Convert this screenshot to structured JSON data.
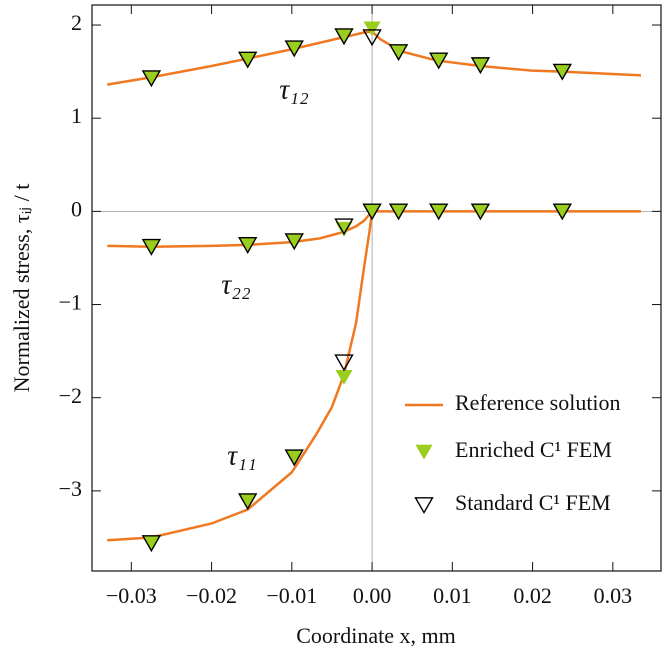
{
  "chart_data": {
    "type": "line-scatter",
    "x_label": "Coordinate x, mm",
    "y_label": "Normalized stress,  τᵢⱼ / t",
    "xlim": [
      -0.0349,
      0.036
    ],
    "ylim": [
      -3.86,
      2.215
    ],
    "xticks": [
      {
        "value": -0.03,
        "label": "−0.03"
      },
      {
        "value": -0.02,
        "label": "−0.02"
      },
      {
        "value": -0.01,
        "label": "−0.01"
      },
      {
        "value": 0,
        "label": "0.00"
      },
      {
        "value": 0.01,
        "label": "0.01"
      },
      {
        "value": 0.02,
        "label": "0.02"
      },
      {
        "value": 0.03,
        "label": "0.03"
      }
    ],
    "yticks": [
      {
        "value": -3,
        "label": "−3"
      },
      {
        "value": -2,
        "label": "−2"
      },
      {
        "value": -1,
        "label": "−1"
      },
      0,
      1,
      2
    ],
    "zero_lines": true,
    "legend": "lower right",
    "annotations": [
      "τ₁₂",
      "τ₂₂",
      "τ₁₁"
    ],
    "series": [
      {
        "name": "Reference solution",
        "color": "#f07820",
        "style": "line",
        "curves": [
          {
            "x": [
              -0.033,
              -0.0275,
              -0.02,
              -0.0155,
              -0.01,
              -0.0035,
              -0.001,
              0,
              0.001,
              0.0035,
              0.008,
              0.0135,
              0.02,
              0.0237,
              0.0335
            ],
            "values": [
              1.36,
              1.44,
              1.56,
              1.64,
              1.74,
              1.87,
              1.92,
              1.93,
              1.85,
              1.72,
              1.62,
              1.56,
              1.51,
              1.5,
              1.46
            ]
          },
          {
            "x": [
              -0.033,
              -0.0275,
              -0.02,
              -0.0155,
              -0.01,
              -0.0065,
              -0.0035,
              -0.002,
              -0.001,
              0,
              0.005,
              0.0335
            ],
            "values": [
              -0.37,
              -0.38,
              -0.37,
              -0.36,
              -0.33,
              -0.29,
              -0.22,
              -0.16,
              -0.1,
              0,
              0,
              0
            ]
          },
          {
            "x": [
              -0.033,
              -0.0275,
              -0.02,
              -0.0155,
              -0.01,
              -0.007,
              -0.005,
              -0.0035,
              -0.002,
              -0.001,
              -0.0003,
              0
            ],
            "values": [
              -3.53,
              -3.5,
              -3.35,
              -3.2,
              -2.8,
              -2.4,
              -2.1,
              -1.75,
              -1.2,
              -0.6,
              -0.2,
              0
            ]
          }
        ]
      },
      {
        "name": "Enriched C¹ FEM",
        "color": "#9acd1e",
        "style": "filled-triangle",
        "curves": [
          {
            "x": [
              -0.0275,
              -0.0155,
              -0.0097,
              -0.0035,
              0,
              0.0033,
              0.0083,
              0.0135,
              0.0237
            ],
            "values": [
              1.43,
              1.63,
              1.75,
              1.88,
              1.96,
              1.71,
              1.62,
              1.57,
              1.5
            ]
          },
          {
            "x": [
              -0.0275,
              -0.0155,
              -0.0097,
              -0.0035,
              0,
              0.0033,
              0.0083,
              0.0135,
              0.0237
            ],
            "values": [
              -0.38,
              -0.36,
              -0.32,
              -0.19,
              0,
              0,
              0,
              0,
              0
            ]
          },
          {
            "x": [
              -0.0275,
              -0.0155,
              -0.0097,
              -0.0035
            ],
            "values": [
              -3.56,
              -3.11,
              -2.64,
              -1.78
            ]
          }
        ]
      },
      {
        "name": "Standard C¹ FEM",
        "color": "#000000",
        "style": "hollow-triangle",
        "curves": [
          {
            "x": [
              -0.0275,
              -0.0155,
              -0.0097,
              -0.0035,
              0,
              0.0033,
              0.0083,
              0.0135,
              0.0237
            ],
            "values": [
              1.43,
              1.63,
              1.75,
              1.88,
              1.87,
              1.71,
              1.62,
              1.57,
              1.5
            ]
          },
          {
            "x": [
              -0.0275,
              -0.0155,
              -0.0097,
              -0.0035,
              0,
              0.0033,
              0.0083,
              0.0135,
              0.0237
            ],
            "values": [
              -0.38,
              -0.36,
              -0.32,
              -0.16,
              0,
              0,
              0,
              0,
              0
            ]
          },
          {
            "x": [
              -0.0275,
              -0.0155,
              -0.0097,
              -0.0035
            ],
            "values": [
              -3.56,
              -3.11,
              -2.64,
              -1.62
            ]
          }
        ]
      }
    ]
  }
}
